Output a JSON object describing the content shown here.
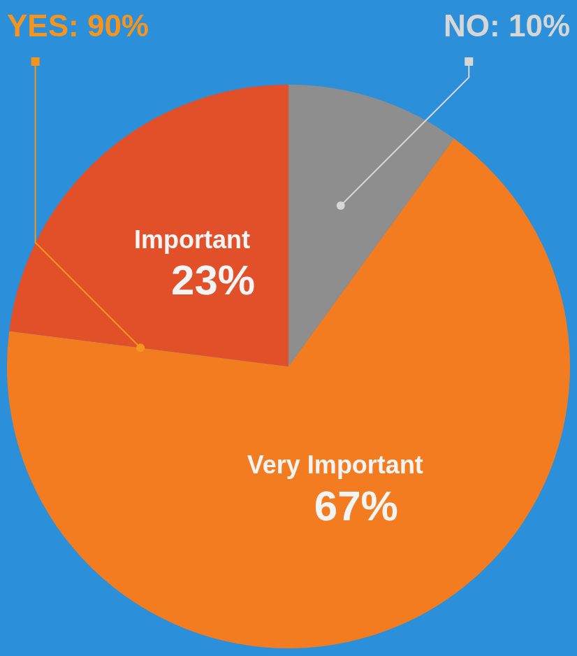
{
  "chart_data": {
    "type": "pie",
    "categories": [
      null,
      "Very Important",
      "Important"
    ],
    "values": [
      10,
      67,
      23
    ],
    "value_labels": [
      null,
      "67%",
      "23%"
    ],
    "colors": [
      "#8e8e8e",
      "#f47c20",
      "#e2502a"
    ],
    "data_labels": true,
    "groups": [
      {
        "label": "YES: 90%",
        "color": "#f7941d",
        "members": [
          1,
          2
        ]
      },
      {
        "label": "NO: 10%",
        "color": "#d6d6d6",
        "members": [
          0
        ]
      }
    ]
  }
}
